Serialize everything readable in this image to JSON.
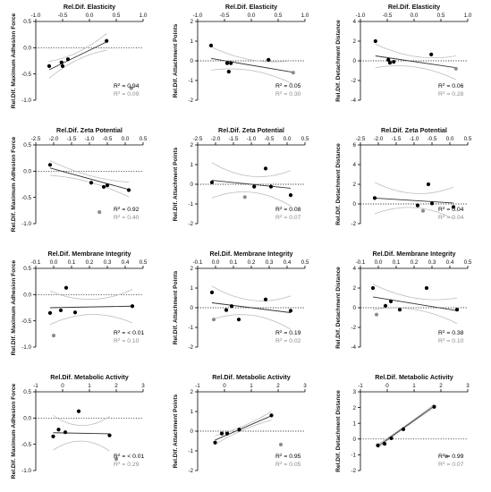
{
  "colors": {
    "black": "#000000",
    "gray": "#8c8c8c",
    "band": "#bdbdbd"
  },
  "chart_data": [
    {
      "type": "scatter",
      "title": "Rel.Dif. Elasticity",
      "ylabel": "Rel.Dif. Maximum Adhesion Force",
      "xlim": [
        -1,
        1
      ],
      "xticks": [
        -1,
        -0.5,
        0,
        0.5,
        1
      ],
      "xtick_labels": [
        "-1.0",
        "-0.5",
        "0.0",
        "0.5",
        "1.0"
      ],
      "ylim": [
        -1,
        0.5
      ],
      "yticks": [
        -1,
        -0.5,
        0,
        0.5
      ],
      "ytick_labels": [
        "-1.0",
        "-0.5",
        "0.0",
        "0.5"
      ],
      "points": [
        [
          -0.75,
          -0.35
        ],
        [
          -0.52,
          -0.28
        ],
        [
          -0.5,
          -0.35
        ],
        [
          -0.4,
          -0.22
        ],
        [
          0.32,
          0.13
        ]
      ],
      "outlier": [
        0.78,
        -0.77
      ],
      "fit": [
        [
          -0.75,
          -0.42
        ],
        [
          0.32,
          0.11
        ]
      ],
      "band_spread": 0.16,
      "r2": "0.94",
      "r2_gray": "0.09"
    },
    {
      "type": "scatter",
      "title": "Rel.Dif. Elasticity",
      "ylabel": "Rel.Dif. Attachment Points",
      "xlim": [
        -1,
        1
      ],
      "xticks": [
        -1,
        -0.5,
        0,
        0.5,
        1
      ],
      "xtick_labels": [
        "-1.0",
        "-0.5",
        "0.0",
        "0.5",
        "1.0"
      ],
      "ylim": [
        -2,
        2
      ],
      "yticks": [
        -2,
        -1,
        0,
        1,
        2
      ],
      "ytick_labels": [
        "-2",
        "-1",
        "0",
        "1",
        "2"
      ],
      "points": [
        [
          -0.75,
          0.78
        ],
        [
          -0.45,
          -0.12
        ],
        [
          -0.38,
          -0.12
        ],
        [
          -0.42,
          -0.55
        ],
        [
          0.32,
          0.05
        ]
      ],
      "outlier": [
        0.78,
        -0.6
      ],
      "fit": [
        [
          -0.75,
          0.12
        ],
        [
          0.78,
          -0.58
        ]
      ],
      "band_spread": 0.6,
      "r2": "0.05",
      "r2_gray": "0.30"
    },
    {
      "type": "scatter",
      "title": "Rel.Dif. Elasticity",
      "ylabel": "Rel.Dif. Detachment Distance",
      "xlim": [
        -1,
        1
      ],
      "xticks": [
        -1,
        -0.5,
        0,
        0.5,
        1
      ],
      "xtick_labels": [
        "-1.0",
        "-0.5",
        "0.0",
        "0.5",
        "1.0"
      ],
      "ylim": [
        -4,
        4
      ],
      "yticks": [
        -4,
        -2,
        0,
        2,
        4
      ],
      "ytick_labels": [
        "-4",
        "-2",
        "0",
        "2",
        "4"
      ],
      "points": [
        [
          -0.72,
          2.0
        ],
        [
          -0.48,
          0.1
        ],
        [
          -0.45,
          -0.2
        ],
        [
          -0.38,
          -0.1
        ],
        [
          0.32,
          0.65
        ]
      ],
      "outlier": [
        0.78,
        -0.8
      ],
      "fit": [
        [
          -0.72,
          0.5
        ],
        [
          0.78,
          -0.7
        ]
      ],
      "band_spread": 1.2,
      "r2": "0.06",
      "r2_gray": "0.28"
    },
    {
      "type": "scatter",
      "title": "Rel.Dif. Zeta Potential",
      "ylabel": "Rel.Dif. Maximum Adhesion Force",
      "xlim": [
        -2.5,
        0.5
      ],
      "xticks": [
        -2.5,
        -2,
        -1.5,
        -1,
        -0.5,
        0,
        0.5
      ],
      "xtick_labels": [
        "-2.5",
        "-2.0",
        "-1.5",
        "-1.0",
        "-0.5",
        "0.0",
        "0.5"
      ],
      "ylim": [
        -1,
        0.5
      ],
      "yticks": [
        -1,
        -0.5,
        0,
        0.5
      ],
      "ytick_labels": [
        "-1.0",
        "-0.5",
        "0.0",
        "0.5"
      ],
      "points": [
        [
          -2.1,
          0.12
        ],
        [
          -0.95,
          -0.22
        ],
        [
          -0.6,
          -0.3
        ],
        [
          -0.5,
          -0.27
        ],
        [
          0.1,
          -0.36
        ]
      ],
      "outlier": [
        -0.72,
        -0.78
      ],
      "fit": [
        [
          -2.1,
          0.06
        ],
        [
          0.1,
          -0.35
        ]
      ],
      "band_spread": 0.14,
      "r2": "0.92",
      "r2_gray": "0.40"
    },
    {
      "type": "scatter",
      "title": "Rel.Dif. Zeta Potential",
      "ylabel": "Rel.Dif. Attachment Points",
      "xlim": [
        -2.5,
        0.5
      ],
      "xticks": [
        -2.5,
        -2,
        -1.5,
        -1,
        -0.5,
        0,
        0.5
      ],
      "xtick_labels": [
        "-2.5",
        "-2.0",
        "-1.5",
        "-1.0",
        "-0.5",
        "0.0",
        "0.5"
      ],
      "ylim": [
        -2,
        2
      ],
      "yticks": [
        -2,
        -1,
        0,
        1,
        2
      ],
      "ytick_labels": [
        "-2",
        "-1",
        "0",
        "1",
        "2"
      ],
      "points": [
        [
          -2.1,
          0.1
        ],
        [
          -0.92,
          -0.12
        ],
        [
          -0.6,
          0.8
        ],
        [
          -0.45,
          -0.12
        ],
        [
          0.1,
          -0.55
        ]
      ],
      "outlier": [
        -1.18,
        -0.65
      ],
      "fit": [
        [
          -2.1,
          0.2
        ],
        [
          0.1,
          -0.2
        ]
      ],
      "band_spread": 0.9,
      "r2": "0.08",
      "r2_gray": "0.07"
    },
    {
      "type": "scatter",
      "title": "Rel.Dif. Zeta Potential",
      "ylabel": "Rel.Dif. Detachment Distance",
      "xlim": [
        -2.5,
        0.5
      ],
      "xticks": [
        -2.5,
        -2,
        -1.5,
        -1,
        -0.5,
        0,
        0.5
      ],
      "xtick_labels": [
        "-2.5",
        "-2.0",
        "-1.5",
        "-1.0",
        "-0.5",
        "0.0",
        "0.5"
      ],
      "ylim": [
        -2,
        6
      ],
      "yticks": [
        -2,
        0,
        2,
        4,
        6
      ],
      "ytick_labels": [
        "-2",
        "0",
        "2",
        "4",
        "6"
      ],
      "points": [
        [
          -2.1,
          0.6
        ],
        [
          -0.9,
          -0.15
        ],
        [
          -0.6,
          2.0
        ],
        [
          -0.5,
          0.05
        ],
        [
          0.1,
          -0.3
        ]
      ],
      "outlier": [
        -0.75,
        -0.7
      ],
      "fit": [
        [
          -2.1,
          0.6
        ],
        [
          0.1,
          0.1
        ]
      ],
      "band_spread": 1.6,
      "r2": "0.04",
      "r2_gray": "0.04"
    },
    {
      "type": "scatter",
      "title": "Rel.Dif. Membrane Integrity",
      "ylabel": "Rel.Dif. Maximum Adhesion Force",
      "xlim": [
        -0.1,
        0.5
      ],
      "xticks": [
        -0.1,
        0,
        0.1,
        0.2,
        0.3,
        0.4,
        0.5
      ],
      "xtick_labels": [
        "-0.1",
        "0.0",
        "0.1",
        "0.2",
        "0.3",
        "0.4",
        "0.5"
      ],
      "ylim": [
        -1,
        0.5
      ],
      "yticks": [
        -1,
        -0.5,
        0,
        0.5
      ],
      "ytick_labels": [
        "-1.0",
        "-0.5",
        "0.0",
        "0.5"
      ],
      "points": [
        [
          -0.02,
          -0.35
        ],
        [
          0.04,
          -0.3
        ],
        [
          0.07,
          0.13
        ],
        [
          0.12,
          -0.34
        ],
        [
          0.44,
          -0.22
        ]
      ],
      "outlier": [
        0.0,
        -0.78
      ],
      "fit": [
        [
          -0.02,
          -0.25
        ],
        [
          0.44,
          -0.22
        ]
      ],
      "band_spread": 0.32,
      "r2": "< 0.01",
      "r2_gray": "0.10"
    },
    {
      "type": "scatter",
      "title": "Rel.Dif. Membrane Integrity",
      "ylabel": "Rel.Dif. Attachment Points",
      "xlim": [
        -0.1,
        0.5
      ],
      "xticks": [
        -0.1,
        0,
        0.1,
        0.2,
        0.3,
        0.4,
        0.5
      ],
      "xtick_labels": [
        "-0.1",
        "0.0",
        "0.1",
        "0.2",
        "0.3",
        "0.4",
        "0.5"
      ],
      "ylim": [
        -2,
        2
      ],
      "yticks": [
        -2,
        -1,
        0,
        1,
        2
      ],
      "ytick_labels": [
        "-2",
        "-1",
        "0",
        "1",
        "2"
      ],
      "points": [
        [
          -0.02,
          0.78
        ],
        [
          0.06,
          -0.12
        ],
        [
          0.09,
          0.08
        ],
        [
          0.13,
          -0.6
        ],
        [
          0.28,
          0.42
        ],
        [
          0.42,
          -0.15
        ]
      ],
      "outlier": [
        -0.01,
        -0.6
      ],
      "fit": [
        [
          -0.02,
          0.25
        ],
        [
          0.42,
          -0.25
        ]
      ],
      "band_spread": 0.85,
      "r2": "0.19",
      "r2_gray": "0.02"
    },
    {
      "type": "scatter",
      "title": "Rel.Dif. Membrane Integrity",
      "ylabel": "Rel.Dif. Detachment Distance",
      "xlim": [
        -0.1,
        0.5
      ],
      "xticks": [
        -0.1,
        0,
        0.1,
        0.2,
        0.3,
        0.4,
        0.5
      ],
      "xtick_labels": [
        "-0.1",
        "0.0",
        "0.1",
        "0.2",
        "0.3",
        "0.4",
        "0.5"
      ],
      "ylim": [
        -4,
        4
      ],
      "yticks": [
        -4,
        -2,
        0,
        2,
        4
      ],
      "ytick_labels": [
        "-4",
        "-2",
        "0",
        "2",
        "4"
      ],
      "points": [
        [
          -0.03,
          2.0
        ],
        [
          0.04,
          0.2
        ],
        [
          0.07,
          0.65
        ],
        [
          0.12,
          -0.2
        ],
        [
          0.27,
          2.0
        ],
        [
          0.44,
          -0.2
        ]
      ],
      "outlier": [
        -0.01,
        -0.7
      ],
      "fit": [
        [
          -0.03,
          1.1
        ],
        [
          0.44,
          -0.3
        ]
      ],
      "band_spread": 1.3,
      "r2": "0.38",
      "r2_gray": "0.10"
    },
    {
      "type": "scatter",
      "title": "Rel.Dif. Metabolic Activity",
      "ylabel": "Rel.Dif. Maximum Adhesion Force",
      "xlim": [
        -1,
        3
      ],
      "xticks": [
        -1,
        0,
        1,
        2,
        3
      ],
      "xtick_labels": [
        "-1",
        "0",
        "1",
        "2",
        "3"
      ],
      "ylim": [
        -1,
        0.5
      ],
      "yticks": [
        -1,
        -0.5,
        0,
        0.5
      ],
      "ytick_labels": [
        "-1.0",
        "-0.5",
        "0.0",
        "0.5"
      ],
      "points": [
        [
          -0.35,
          -0.35
        ],
        [
          -0.15,
          -0.22
        ],
        [
          0.1,
          -0.27
        ],
        [
          0.6,
          0.13
        ],
        [
          1.75,
          -0.33
        ]
      ],
      "outlier": [
        2.0,
        -0.78
      ],
      "fit": [
        [
          -0.35,
          -0.28
        ],
        [
          1.75,
          -0.3
        ]
      ],
      "band_spread": 0.33,
      "r2": "< 0.01",
      "r2_gray": "0.29"
    },
    {
      "type": "scatter",
      "title": "Rel.Dif. Metabolic Activity",
      "ylabel": "Rel.Dif. Attachment Points",
      "xlim": [
        -1,
        3
      ],
      "xticks": [
        -1,
        0,
        1,
        2,
        3
      ],
      "xtick_labels": [
        "-1",
        "0",
        "1",
        "2",
        "3"
      ],
      "ylim": [
        -2,
        2
      ],
      "yticks": [
        -2,
        -1,
        0,
        1,
        2
      ],
      "ytick_labels": [
        "-2",
        "-1",
        "0",
        "1",
        "2"
      ],
      "points": [
        [
          -0.35,
          -0.58
        ],
        [
          -0.1,
          -0.12
        ],
        [
          0.1,
          -0.12
        ],
        [
          0.55,
          0.08
        ],
        [
          1.75,
          0.8
        ]
      ],
      "outlier": [
        2.1,
        -0.68
      ],
      "fit": [
        [
          -0.35,
          -0.45
        ],
        [
          1.75,
          0.78
        ]
      ],
      "band_spread": 0.22,
      "r2": "0.95",
      "r2_gray": "0.05"
    },
    {
      "type": "scatter",
      "title": "Rel.Dif. Metabolic Activity",
      "ylabel": "Rel.Dif. Detachment Distance",
      "xlim": [
        -1,
        3
      ],
      "xticks": [
        -1,
        0,
        1,
        2,
        3
      ],
      "xtick_labels": [
        "-1",
        "0",
        "1",
        "2",
        "3"
      ],
      "ylim": [
        -2,
        3
      ],
      "yticks": [
        -2,
        -1,
        0,
        1,
        2,
        3
      ],
      "ytick_labels": [
        "-2",
        "-1",
        "0",
        "1",
        "2",
        "3"
      ],
      "points": [
        [
          -0.35,
          -0.4
        ],
        [
          -0.1,
          -0.3
        ],
        [
          0.15,
          0.05
        ],
        [
          0.6,
          0.62
        ],
        [
          1.75,
          2.05
        ]
      ],
      "outlier": [
        2.2,
        -1.1
      ],
      "fit": [
        [
          -0.35,
          -0.45
        ],
        [
          1.75,
          2.1
        ]
      ],
      "band_spread": 0.12,
      "r2": "0.99",
      "r2_gray": "0.07"
    }
  ]
}
